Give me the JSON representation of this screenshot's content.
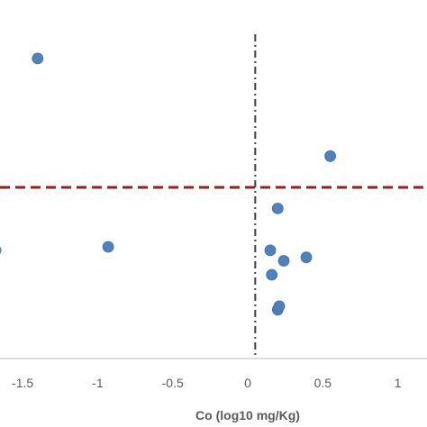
{
  "chart_data": {
    "type": "scatter",
    "title": "",
    "xlabel": "Co (log10 mg/Kg)",
    "ylabel": "",
    "xlim": [
      -1.66,
      1.2
    ],
    "x_ticks": [
      "-1.5",
      "-1",
      "-0.5",
      "0",
      "0.5",
      "1"
    ],
    "x_tick_values": [
      -1.5,
      -1,
      -0.5,
      0,
      0.5,
      1
    ],
    "grid": false,
    "legend": "none",
    "point_color": "#4f81bd",
    "vertical_reference_x": 0.05,
    "vertical_reference_color": "#404040",
    "horizontal_reference_color": "#9b1c1c",
    "series": [
      {
        "points": [
          {
            "x": -1.4,
            "y": 0.86
          },
          {
            "x": -1.68,
            "y": 0.31
          },
          {
            "x": -0.93,
            "y": 0.32
          },
          {
            "x": 0.55,
            "y": 0.58
          },
          {
            "x": 0.2,
            "y": 0.43
          },
          {
            "x": 0.15,
            "y": 0.31
          },
          {
            "x": 0.24,
            "y": 0.28
          },
          {
            "x": 0.39,
            "y": 0.29
          },
          {
            "x": 0.16,
            "y": 0.24
          },
          {
            "x": 0.2,
            "y": 0.14
          },
          {
            "x": 0.21,
            "y": 0.15
          }
        ]
      }
    ]
  }
}
